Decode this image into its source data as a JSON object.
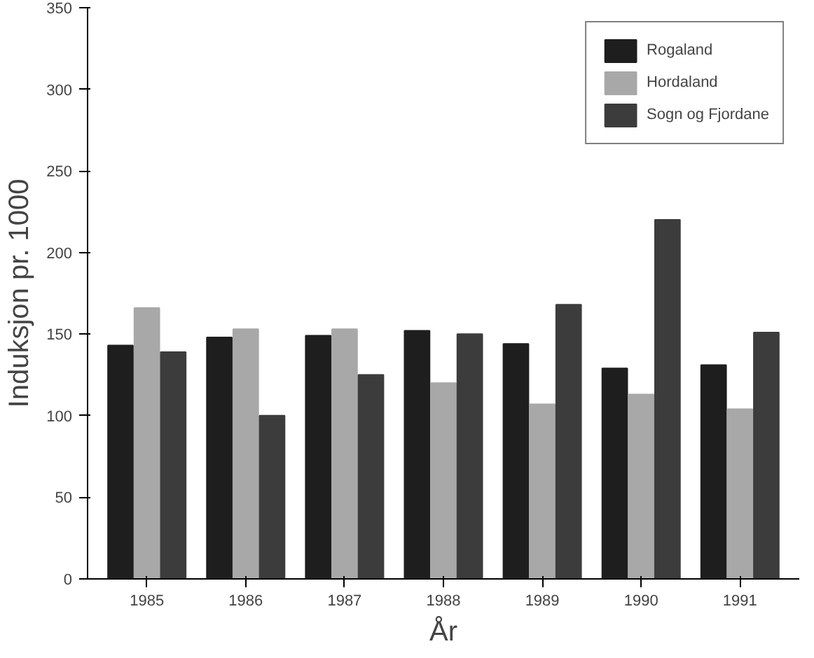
{
  "chart_data": {
    "type": "bar",
    "xlabel": "År",
    "ylabel": "Induksjon pr. 1000",
    "categories": [
      "1985",
      "1986",
      "1987",
      "1988",
      "1989",
      "1990",
      "1991"
    ],
    "series": [
      {
        "name": "Rogaland",
        "color": "#1e1e1e",
        "values": [
          143,
          148,
          149,
          152,
          144,
          129,
          131
        ]
      },
      {
        "name": "Hordaland",
        "color": "#a8a8a8",
        "values": [
          166,
          153,
          153,
          120,
          107,
          113,
          104
        ]
      },
      {
        "name": "Sogn og Fjordane",
        "color": "#3c3c3c",
        "values": [
          139,
          100,
          125,
          150,
          168,
          220,
          151
        ]
      }
    ],
    "ylim": [
      0,
      350
    ],
    "yticks": [
      0,
      50,
      100,
      150,
      200,
      250,
      300,
      350
    ],
    "grid": false,
    "legend": "top right"
  }
}
